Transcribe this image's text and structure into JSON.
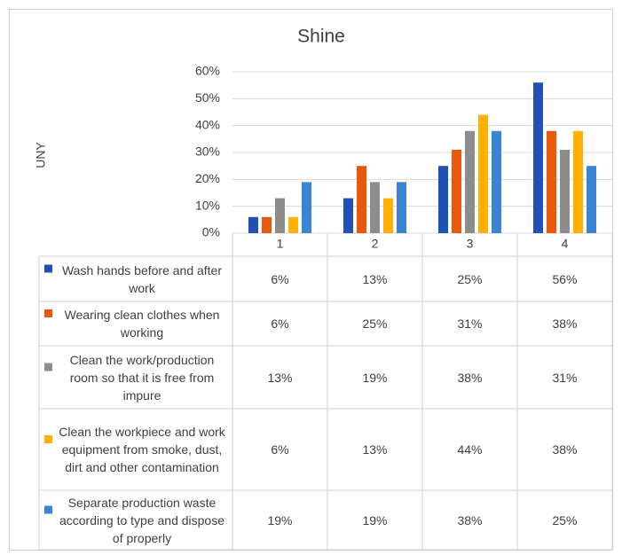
{
  "chart_data": {
    "type": "bar",
    "title": "Shine",
    "y_label": "UNY",
    "categories": [
      "1",
      "2",
      "3",
      "4"
    ],
    "series": [
      {
        "name": "Wash hands before and after work",
        "color": "#2251b5",
        "values": [
          6,
          13,
          25,
          56
        ],
        "value_labels": [
          "6%",
          "13%",
          "25%",
          "56%"
        ]
      },
      {
        "name": "Wearing clean clothes when working",
        "color": "#e8590c",
        "values": [
          6,
          25,
          31,
          38
        ],
        "value_labels": [
          "6%",
          "25%",
          "31%",
          "38%"
        ]
      },
      {
        "name": "Clean the work/production room so that it is free from impure",
        "color": "#8c8c8c",
        "values": [
          13,
          19,
          38,
          31
        ],
        "value_labels": [
          "13%",
          "19%",
          "38%",
          "31%"
        ]
      },
      {
        "name": "Clean the workpiece and work equipment from smoke, dust, dirt and other contamination",
        "color": "#ffb000",
        "values": [
          6,
          13,
          44,
          38
        ],
        "value_labels": [
          "6%",
          "13%",
          "44%",
          "38%"
        ]
      },
      {
        "name": "Separate production waste according to type and dispose of properly",
        "color": "#3a85d3",
        "values": [
          19,
          19,
          38,
          25
        ],
        "value_labels": [
          "19%",
          "19%",
          "38%",
          "25%"
        ]
      }
    ],
    "ylim": [
      0,
      60
    ],
    "yticks": [
      {
        "value": 0,
        "label": "0%"
      },
      {
        "value": 10,
        "label": "10%"
      },
      {
        "value": 20,
        "label": "20%"
      },
      {
        "value": 30,
        "label": "30%"
      },
      {
        "value": 40,
        "label": "40%"
      },
      {
        "value": 50,
        "label": "50%"
      },
      {
        "value": 60,
        "label": "60%"
      }
    ],
    "grid": true
  }
}
